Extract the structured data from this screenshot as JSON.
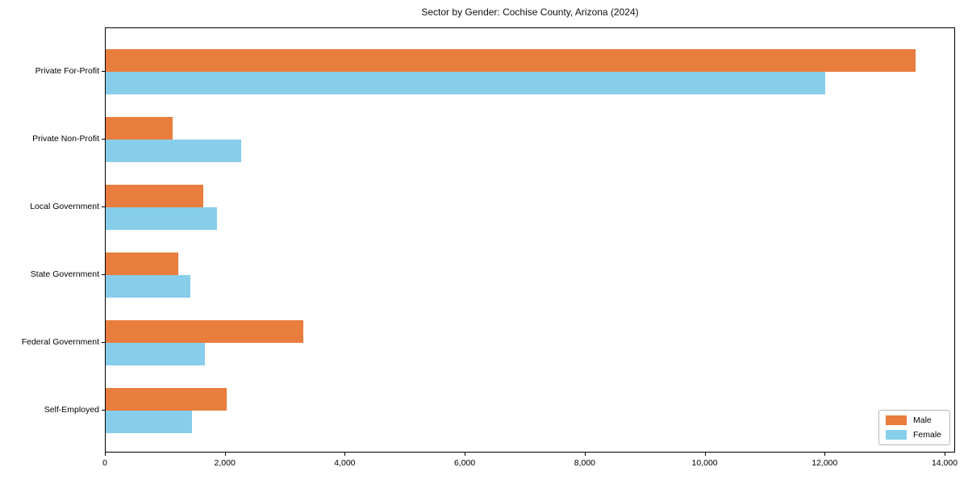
{
  "chart_data": {
    "type": "bar",
    "orientation": "horizontal",
    "title": "Sector by Gender: Cochise County, Arizona (2024)",
    "categories": [
      "Private For-Profit",
      "Private Non-Profit",
      "Local Government",
      "State Government",
      "Federal Government",
      "Self-Employed"
    ],
    "series": [
      {
        "name": "Male",
        "color": "#e87d3d",
        "values": [
          13500,
          1110,
          1630,
          1210,
          3300,
          2010
        ]
      },
      {
        "name": "Female",
        "color": "#87ceeb",
        "values": [
          12000,
          2260,
          1860,
          1410,
          1650,
          1440
        ]
      }
    ],
    "xlabel": "",
    "ylabel": "",
    "xlim": [
      0,
      14175
    ],
    "xticks": [
      0,
      2000,
      4000,
      6000,
      8000,
      10000,
      12000,
      14000
    ],
    "xtick_labels": [
      "0",
      "2,000",
      "4,000",
      "6,000",
      "8,000",
      "10,000",
      "12,000",
      "14,000"
    ],
    "grid": false,
    "legend": {
      "position": "lower right"
    }
  }
}
